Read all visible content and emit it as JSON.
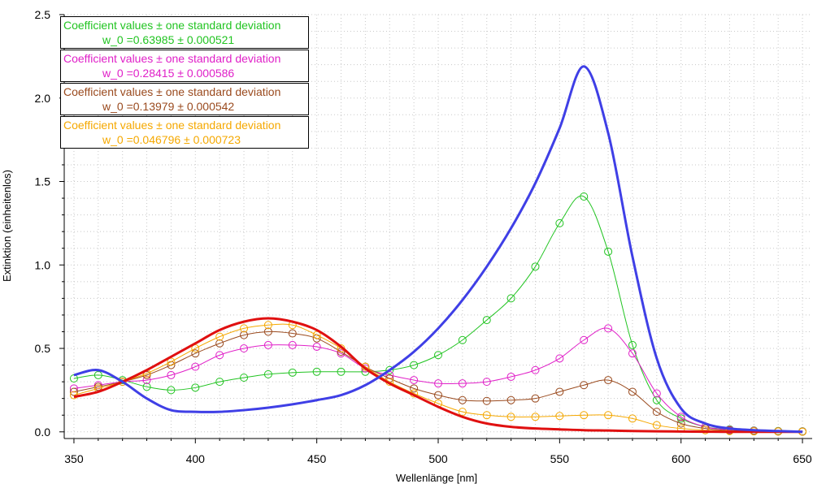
{
  "chart_data": {
    "type": "line",
    "xlabel": "Wellenlänge [nm]",
    "ylabel": "Extinktion (einheitenlos)",
    "xlim": [
      346,
      654
    ],
    "ylim": [
      -0.04,
      2.5
    ],
    "xticks": [
      "350",
      "400",
      "450",
      "500",
      "550",
      "600",
      "650"
    ],
    "yticks": [
      "0.0",
      "0.5",
      "1.0",
      "1.5",
      "2.0",
      "2.5"
    ],
    "xtick_values": [
      350,
      400,
      450,
      500,
      550,
      600,
      650
    ],
    "ytick_values": [
      0.0,
      0.5,
      1.0,
      1.5,
      2.0,
      2.5
    ],
    "grid": true,
    "x": [
      350,
      360,
      370,
      380,
      390,
      400,
      410,
      420,
      430,
      440,
      450,
      460,
      470,
      480,
      490,
      500,
      510,
      520,
      530,
      540,
      550,
      560,
      570,
      580,
      590,
      600,
      610,
      620,
      630,
      640,
      650
    ],
    "series": [
      {
        "color": "#3f3fe6",
        "style": "line",
        "values": [
          0.34,
          0.37,
          0.3,
          0.2,
          0.13,
          0.12,
          0.12,
          0.13,
          0.145,
          0.165,
          0.19,
          0.22,
          0.28,
          0.37,
          0.48,
          0.62,
          0.79,
          0.99,
          1.22,
          1.49,
          1.82,
          2.19,
          1.79,
          1.05,
          0.44,
          0.14,
          0.05,
          0.02,
          0.01,
          0.005,
          0.0
        ]
      },
      {
        "color": "#e01010",
        "style": "line",
        "values": [
          0.21,
          0.24,
          0.3,
          0.37,
          0.45,
          0.53,
          0.61,
          0.66,
          0.68,
          0.66,
          0.61,
          0.51,
          0.38,
          0.29,
          0.22,
          0.15,
          0.09,
          0.05,
          0.03,
          0.02,
          0.015,
          0.01,
          0.008,
          0.005,
          0.003,
          0.002,
          0.001,
          0.0,
          0.0,
          0.0,
          0.0
        ]
      },
      {
        "color": "#22c422",
        "style": "fit",
        "values": [
          0.32,
          0.34,
          0.31,
          0.27,
          0.25,
          0.265,
          0.3,
          0.325,
          0.345,
          0.355,
          0.36,
          0.36,
          0.36,
          0.37,
          0.4,
          0.46,
          0.55,
          0.67,
          0.8,
          0.99,
          1.25,
          1.41,
          1.08,
          0.52,
          0.19,
          0.08,
          0.03,
          0.015,
          0.008,
          0.005,
          0.003
        ]
      },
      {
        "color": "#e020c8",
        "style": "fit",
        "values": [
          0.26,
          0.28,
          0.3,
          0.31,
          0.34,
          0.39,
          0.46,
          0.5,
          0.52,
          0.52,
          0.51,
          0.47,
          0.38,
          0.34,
          0.31,
          0.29,
          0.29,
          0.3,
          0.33,
          0.37,
          0.44,
          0.55,
          0.62,
          0.47,
          0.23,
          0.09,
          0.03,
          0.012,
          0.006,
          0.003,
          0.002
        ]
      },
      {
        "color": "#9a4a1e",
        "style": "fit",
        "values": [
          0.24,
          0.27,
          0.3,
          0.34,
          0.4,
          0.47,
          0.53,
          0.58,
          0.6,
          0.59,
          0.56,
          0.48,
          0.39,
          0.32,
          0.26,
          0.22,
          0.19,
          0.185,
          0.19,
          0.2,
          0.24,
          0.28,
          0.31,
          0.24,
          0.12,
          0.05,
          0.02,
          0.008,
          0.004,
          0.002,
          0.001
        ]
      },
      {
        "color": "#f5a800",
        "style": "fit",
        "values": [
          0.22,
          0.26,
          0.3,
          0.35,
          0.42,
          0.5,
          0.57,
          0.62,
          0.64,
          0.64,
          0.58,
          0.5,
          0.39,
          0.3,
          0.23,
          0.17,
          0.12,
          0.1,
          0.09,
          0.09,
          0.095,
          0.1,
          0.1,
          0.08,
          0.04,
          0.02,
          0.01,
          0.005,
          0.003,
          0.002,
          0.001
        ]
      }
    ]
  },
  "legends": [
    {
      "title": "Coefficient values ± one standard deviation",
      "coef": "w_0     =0.63985 ± 0.000521",
      "color": "#22c422"
    },
    {
      "title": "Coefficient values ± one standard deviation",
      "coef": "w_0     =0.28415 ± 0.000586",
      "color": "#e020c8"
    },
    {
      "title": "Coefficient values ± one standard deviation",
      "coef": "w_0     =0.13979 ± 0.000542",
      "color": "#9a4a1e"
    },
    {
      "title": "Coefficient values ± one standard deviation",
      "coef": "w_0     =0.046796 ± 0.000723",
      "color": "#f5a800"
    }
  ]
}
